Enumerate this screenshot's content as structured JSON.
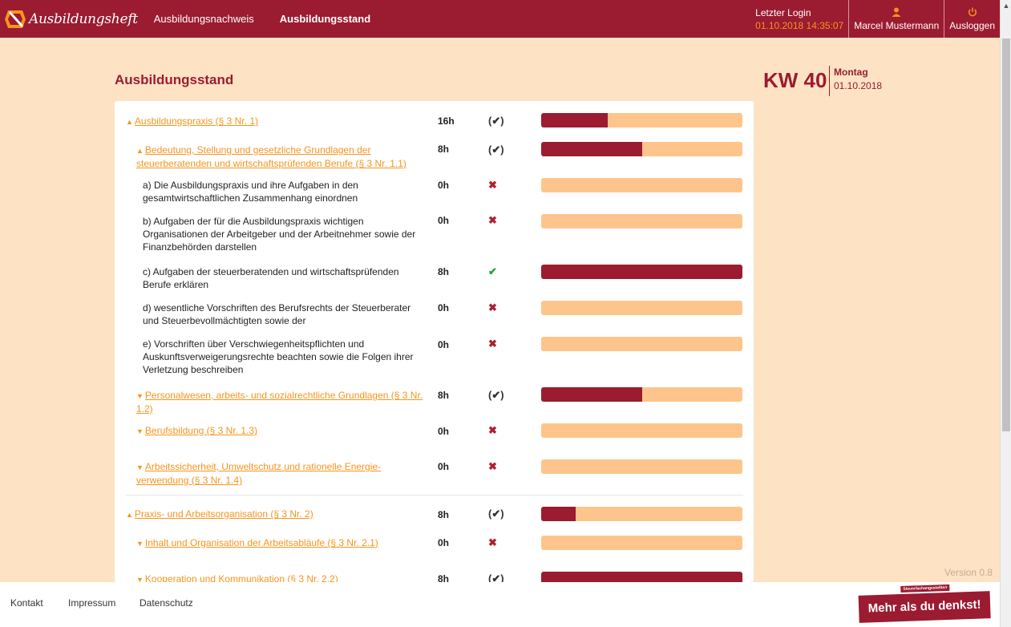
{
  "header": {
    "brand": "Ausbildungsheft",
    "nav": [
      {
        "label": "Ausbildungsnachweis"
      },
      {
        "label": "Ausbildungsstand"
      }
    ],
    "last_login_label": "Letzter Login",
    "last_login_time": "01.10.2018 14:35:07",
    "user_icon": "user-icon",
    "user_name": "Marcel Mustermann",
    "logout_icon": "power-icon",
    "logout_label": "Ausloggen",
    "colors": {
      "brand": "#9b1b30",
      "accent": "#f7941d",
      "background": "#fde3c4",
      "bar_track": "#fdc58b"
    }
  },
  "page": {
    "title": "Ausbildungsstand",
    "week": "KW 40",
    "weekday": "Montag",
    "date": "01.10.2018"
  },
  "rows": [
    {
      "title": "Ausbildungspraxis (§ 3 Nr. 1)",
      "hours": "16h",
      "status": "(✔)",
      "progress": 0.33
    },
    {
      "title": "Bedeutung, Stellung und gesetzliche Grundlagen der steuerberatenden und wirtschaftsprüfenden Berufe (§ 3 Nr. 1.1)",
      "hours": "8h",
      "status": "(✔)",
      "progress": 0.5
    },
    {
      "title": "a) Die Ausbildungspraxis und ihre Aufgaben in den gesamtwirtschaftlichen Zusammenhang einordnen",
      "hours": "0h",
      "status": "✖",
      "progress": 0
    },
    {
      "title": "b) Aufgaben der für die Ausbildungspraxis wichtigen Organisationen der Arbeitgeber und der Arbeitnehmer sowie der Finanzbehörden darstellen",
      "hours": "0h",
      "status": "✖",
      "progress": 0
    },
    {
      "title": "c) Aufgaben der steuerberatenden und wirtschaftsprüfenden Berufe erklären",
      "hours": "8h",
      "status": "✔",
      "progress": 1
    },
    {
      "title": "d) wesentliche Vorschriften des Berufsrechts der Steuerberater und Steuerbevollmächtigten sowie der",
      "hours": "0h",
      "status": "✖",
      "progress": 0
    },
    {
      "title": "e) Vorschriften über Verschwiegenheitspflichten und Auskunftsverweigerungsrechte beachten sowie die Folgen ihrer Verletzung beschreiben",
      "hours": "0h",
      "status": "✖",
      "progress": 0
    },
    {
      "title": "Personalwesen, arbeits- und sozialrechtliche Grundlagen (§ 3 Nr. 1.2)",
      "hours": "8h",
      "status": "(✔)",
      "progress": 0.5
    },
    {
      "title": "Berufsbildung (§ 3 Nr. 1.3)",
      "hours": "0h",
      "status": "✖",
      "progress": 0
    },
    {
      "title": "Arbeitssicherheit, Umweltschutz und rationelle Energie- verwendung (§ 3 Nr. 1.4)",
      "hours": "0h",
      "status": "✖",
      "progress": 0
    },
    {
      "title": "Praxis- und Arbeitsorganisation (§ 3 Nr. 2)",
      "hours": "8h",
      "status": "(✔)",
      "progress": 0.17
    },
    {
      "title": "Inhalt und Organisation der Arbeitsabläufe (§ 3 Nr. 2.1)",
      "hours": "0h",
      "status": "✖",
      "progress": 0
    },
    {
      "title": "Kooperation und Kommunikation (§ 3 Nr. 2.2)",
      "hours": "8h",
      "status": "(✔)",
      "progress": 1
    }
  ],
  "version": "Version 0.8",
  "footer": {
    "links": [
      {
        "label": "Kontakt"
      },
      {
        "label": "Impressum"
      },
      {
        "label": "Datenschutz"
      }
    ],
    "badge_small": "Steuerfachangestellte/r",
    "badge_main": "Mehr als du denkst!"
  }
}
